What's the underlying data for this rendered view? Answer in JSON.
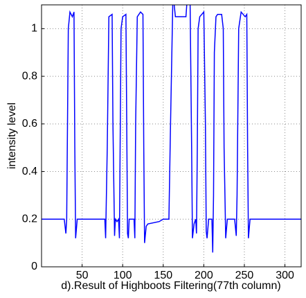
{
  "chart_data": {
    "type": "line",
    "xlabel": "d).Result of Highboots Filtering(77th column)",
    "ylabel": "intensity level",
    "x": [
      0,
      28,
      30,
      31,
      33,
      35,
      38,
      40,
      41,
      42,
      44,
      78,
      79,
      81,
      83,
      87,
      88,
      90,
      91,
      93,
      95,
      96,
      98,
      100,
      104,
      105,
      106,
      107,
      108,
      110,
      114,
      115,
      116,
      118,
      122,
      125,
      126,
      127,
      129,
      131,
      145,
      150,
      157,
      159,
      162,
      165,
      178,
      180,
      183,
      185,
      186,
      188,
      190,
      191,
      192,
      193,
      195,
      200,
      202,
      203,
      204,
      206,
      210,
      211,
      212,
      213,
      215,
      217,
      222,
      224,
      225,
      227,
      229,
      238,
      240,
      241,
      243,
      246,
      251,
      253,
      254,
      255,
      257,
      320
    ],
    "values": [
      0.2,
      0.2,
      0.14,
      0.2,
      1.0,
      1.07,
      1.05,
      1.07,
      0.5,
      0.12,
      0.2,
      0.2,
      0.12,
      0.5,
      1.05,
      1.06,
      0.6,
      0.13,
      0.2,
      0.19,
      0.2,
      0.12,
      1.0,
      1.05,
      1.06,
      0.6,
      0.14,
      0.12,
      0.2,
      0.2,
      0.2,
      0.12,
      0.6,
      1.05,
      1.07,
      1.06,
      0.5,
      0.1,
      0.17,
      0.18,
      0.19,
      0.2,
      0.2,
      0.6,
      1.15,
      1.05,
      1.05,
      1.15,
      1.15,
      0.5,
      0.12,
      0.18,
      0.2,
      0.14,
      0.5,
      1.0,
      1.05,
      1.07,
      0.6,
      0.15,
      0.12,
      0.2,
      0.2,
      0.06,
      0.3,
      0.9,
      1.05,
      1.06,
      1.06,
      1.0,
      0.5,
      0.12,
      0.2,
      0.2,
      0.13,
      0.3,
      1.0,
      1.07,
      1.05,
      1.06,
      0.5,
      0.12,
      0.2,
      0.2
    ],
    "color": "#0000ff",
    "xlim": [
      0,
      320
    ],
    "xticks": [
      50,
      100,
      150,
      200,
      250,
      300
    ],
    "ylim": [
      0,
      1.1
    ],
    "yticks": [
      0,
      0.2,
      0.4,
      0.6,
      0.8,
      1
    ],
    "grid": true
  }
}
